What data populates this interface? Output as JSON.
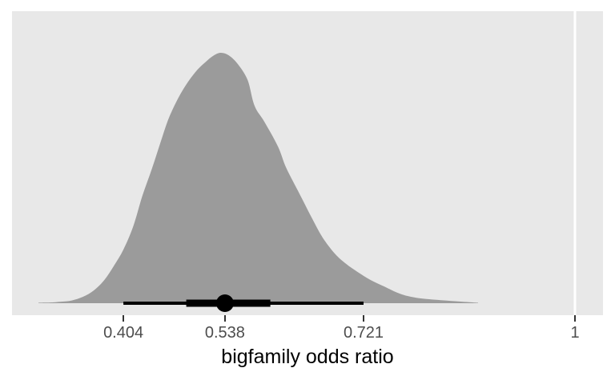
{
  "chart_data": {
    "type": "density",
    "variant": "halfeye-posterior",
    "title": "",
    "xlabel": "bigfamily odds ratio",
    "ylabel": "",
    "x_domain": [
      0.257,
      1.037
    ],
    "grid": false,
    "legend": "none",
    "x_ticks": [
      {
        "value": 0.404,
        "label": "0.404"
      },
      {
        "value": 0.538,
        "label": "0.538"
      },
      {
        "value": 0.721,
        "label": "0.721"
      },
      {
        "value": 1,
        "label": "1"
      }
    ],
    "reference_line": {
      "value": 1
    },
    "density": {
      "x": [
        0.292,
        0.307,
        0.322,
        0.336,
        0.351,
        0.365,
        0.379,
        0.391,
        0.404,
        0.417,
        0.429,
        0.442,
        0.453,
        0.463,
        0.474,
        0.486,
        0.499,
        0.512,
        0.522,
        0.532,
        0.543,
        0.555,
        0.568,
        0.577,
        0.59,
        0.608,
        0.619,
        0.637,
        0.653,
        0.667,
        0.683,
        0.698,
        0.713,
        0.73,
        0.748,
        0.769,
        0.79,
        0.819,
        0.851,
        0.872
      ],
      "h": [
        0.002,
        0.003,
        0.006,
        0.011,
        0.026,
        0.051,
        0.093,
        0.147,
        0.214,
        0.307,
        0.428,
        0.54,
        0.642,
        0.732,
        0.805,
        0.869,
        0.923,
        0.962,
        0.987,
        1.0,
        0.99,
        0.955,
        0.891,
        0.789,
        0.725,
        0.626,
        0.54,
        0.434,
        0.339,
        0.262,
        0.198,
        0.157,
        0.125,
        0.093,
        0.067,
        0.038,
        0.022,
        0.013,
        0.006,
        0.002
      ]
    },
    "point_interval": {
      "point": 0.538,
      "interval_thick": [
        0.487,
        0.598
      ],
      "interval_thin": [
        0.404,
        0.721
      ]
    },
    "colors": {
      "page_bg": "#ffffff",
      "panel_bg": "#e8e8e8",
      "slab_fill": "#9b9b9b",
      "interval": "#000000",
      "reference_line": "#ffffff",
      "tick_mark": "#333333",
      "tick_label": "#4d4d4d",
      "axis_title": "#000000"
    }
  }
}
